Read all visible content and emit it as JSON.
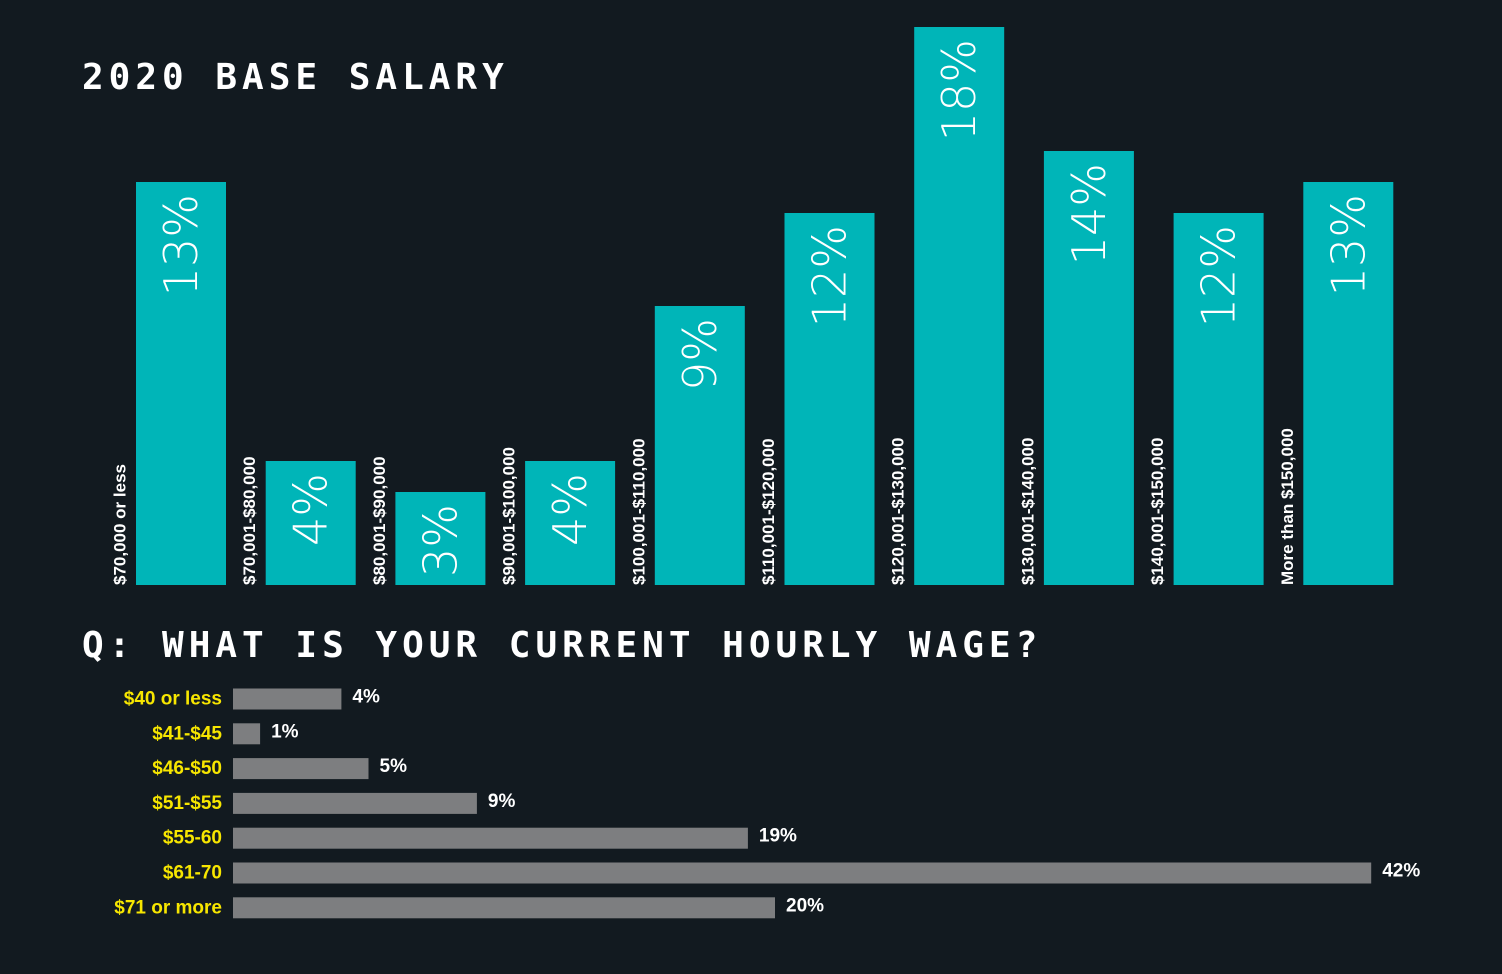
{
  "chart_data": [
    {
      "type": "bar",
      "orientation": "vertical",
      "title": "2020 BASE SALARY",
      "categories": [
        "$70,000 or less",
        "$70,001-$80,000",
        "$80,001-$90,000",
        "$90,001-$100,000",
        "$100,001-$110,000",
        "$110,001-$120,000",
        "$120,001-$130,000",
        "$130,001-$140,000",
        "$140,001-$150,000",
        "More than $150,000"
      ],
      "values": [
        13,
        4,
        3,
        4,
        9,
        12,
        18,
        14,
        12,
        13
      ],
      "value_labels": [
        "13%",
        "4%",
        "3%",
        "4%",
        "9%",
        "12%",
        "18%",
        "14%",
        "12%",
        "13%"
      ],
      "unit": "%",
      "bar_color": "#00b5b8",
      "label_color": "#ffffff",
      "grid": false,
      "legend": "none"
    },
    {
      "type": "bar",
      "orientation": "horizontal",
      "title": "Q: WHAT IS YOUR CURRENT HOURLY WAGE?",
      "categories": [
        "$40 or less",
        "$41-$45",
        "$46-$50",
        "$51-$55",
        "$55-60",
        "$61-70",
        "$71 or more"
      ],
      "values": [
        4,
        1,
        5,
        9,
        19,
        42,
        20
      ],
      "value_labels": [
        "4%",
        "1%",
        "5%",
        "9%",
        "19%",
        "42%",
        "20%"
      ],
      "unit": "%",
      "bar_color": "#7d7e80",
      "category_color": "#f7e600",
      "label_color": "#ffffff",
      "grid": false,
      "legend": "none"
    }
  ],
  "background_color": "#121a20"
}
